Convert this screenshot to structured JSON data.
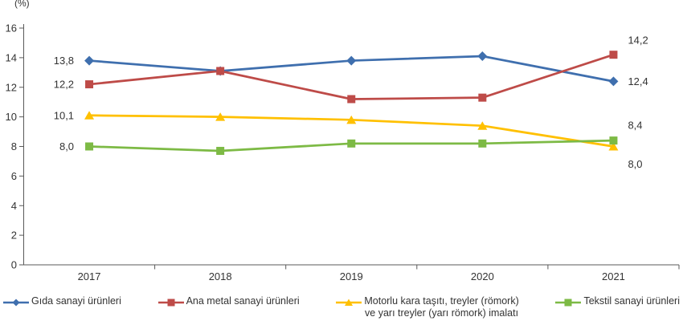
{
  "chart": {
    "unit_label": "(%)"
  },
  "chart_data": {
    "type": "line",
    "title": "",
    "unit_label": "(%)",
    "categories": [
      "2017",
      "2018",
      "2019",
      "2020",
      "2021"
    ],
    "ylim": [
      0,
      16
    ],
    "ytick_interval": 2,
    "ytick_labels": [
      "0",
      "2",
      "4",
      "6",
      "8",
      "10",
      "12",
      "14",
      "16"
    ],
    "grid": false,
    "legend_position": "bottom",
    "decimal_separator": ",",
    "axis_color": "#595959",
    "text_color": "#333333",
    "series": [
      {
        "name": "Gıda sanayi ürünleri",
        "legend_lines": [
          "Gıda sanayi ürünleri"
        ],
        "color": "#3F6FAE",
        "marker": "diamond",
        "values": [
          13.8,
          13.1,
          13.8,
          14.1,
          12.4
        ],
        "first_point_label": "13,8",
        "last_point_label": "12,4",
        "first_label_dy": 0,
        "last_label_dy": 0
      },
      {
        "name": "Ana metal sanayi ürünleri",
        "legend_lines": [
          "Ana metal sanayi ürünleri"
        ],
        "color": "#BE4B48",
        "marker": "square",
        "values": [
          12.2,
          13.1,
          11.2,
          11.3,
          14.2
        ],
        "first_point_label": "12,2",
        "last_point_label": "14,2",
        "first_label_dy": 0,
        "last_label_dy": -18
      },
      {
        "name": "Motorlu kara taşıtı, treyler (römork) ve yarı treyler (yarı römork) imalatı",
        "legend_lines": [
          "Motorlu kara taşıtı, treyler (römork)",
          "ve yarı treyler (yarı römork) imalatı"
        ],
        "color": "#FFC000",
        "marker": "triangle",
        "values": [
          10.1,
          10.0,
          9.8,
          9.4,
          8.0
        ],
        "first_point_label": "10,1",
        "last_point_label": "8,0",
        "first_label_dy": 0,
        "last_label_dy": 22
      },
      {
        "name": "Tekstil sanayi ürünleri",
        "legend_lines": [
          "Tekstil sanayi ürünleri"
        ],
        "color": "#7DBA45",
        "marker": "square",
        "values": [
          8.0,
          7.7,
          8.2,
          8.2,
          8.4
        ],
        "first_point_label": "8,0",
        "last_point_label": "8,4",
        "first_label_dy": 0,
        "last_label_dy": -19
      }
    ]
  }
}
